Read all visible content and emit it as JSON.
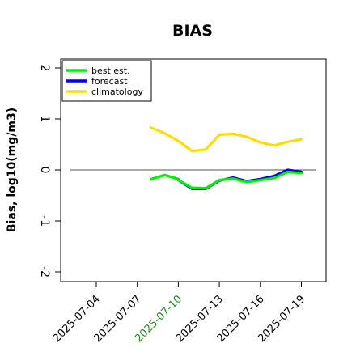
{
  "chart_data": {
    "type": "line",
    "title": "BIAS",
    "ylabel": "Bias, log10(mg/m3)",
    "xlabel": "",
    "ylim": [
      -2.1,
      2.1
    ],
    "yticks": [
      "-2",
      "-1",
      "0",
      "1",
      "2"
    ],
    "reference_line": 0,
    "grid": false,
    "legend_position": "top-left",
    "x_dates": [
      "2025-07-08",
      "2025-07-09",
      "2025-07-10",
      "2025-07-11",
      "2025-07-12",
      "2025-07-13",
      "2025-07-14",
      "2025-07-15",
      "2025-07-16",
      "2025-07-17",
      "2025-07-18",
      "2025-07-19"
    ],
    "xtick_labels": [
      {
        "date": "2025-07-04",
        "label": "2025-07-04",
        "color": "#000000"
      },
      {
        "date": "2025-07-07",
        "label": "2025-07-07",
        "color": "#000000"
      },
      {
        "date": "2025-07-10",
        "label": "2025-07-10",
        "color": "#228B22"
      },
      {
        "date": "2025-07-13",
        "label": "2025-07-13",
        "color": "#000000"
      },
      {
        "date": "2025-07-16",
        "label": "2025-07-16",
        "color": "#000000"
      },
      {
        "date": "2025-07-19",
        "label": "2025-07-19",
        "color": "#000000"
      }
    ],
    "series": [
      {
        "name": "best est.",
        "color": "#00ee00",
        "x": [
          "2025-07-08",
          "2025-07-09",
          "2025-07-10"
        ],
        "values": [
          -0.18,
          -0.1,
          -0.18
        ]
      },
      {
        "name": "forecast",
        "color": "#0000ee",
        "x": [
          "2025-07-10",
          "2025-07-11",
          "2025-07-12",
          "2025-07-13",
          "2025-07-14",
          "2025-07-15",
          "2025-07-16",
          "2025-07-17",
          "2025-07-18",
          "2025-07-19"
        ],
        "values": [
          -0.2,
          -0.37,
          -0.37,
          -0.21,
          -0.15,
          -0.22,
          -0.18,
          -0.12,
          0.0,
          -0.04
        ]
      },
      {
        "name": "",
        "color": "#00ee00",
        "x": [
          "2025-07-10",
          "2025-07-11",
          "2025-07-12",
          "2025-07-13",
          "2025-07-14",
          "2025-07-15",
          "2025-07-16",
          "2025-07-17",
          "2025-07-18",
          "2025-07-19"
        ],
        "values": [
          -0.2,
          -0.35,
          -0.36,
          -0.2,
          -0.17,
          -0.24,
          -0.2,
          -0.16,
          -0.04,
          -0.06
        ]
      },
      {
        "name": "climatology",
        "color": "#ffdd00",
        "x": [
          "2025-07-08",
          "2025-07-09",
          "2025-07-10",
          "2025-07-11",
          "2025-07-12",
          "2025-07-13",
          "2025-07-14",
          "2025-07-15",
          "2025-07-16",
          "2025-07-17",
          "2025-07-18",
          "2025-07-19"
        ],
        "values": [
          0.83,
          0.72,
          0.57,
          0.37,
          0.4,
          0.69,
          0.71,
          0.65,
          0.54,
          0.48,
          0.55,
          0.6
        ]
      }
    ],
    "legend": [
      {
        "label": "best est.",
        "color": "#00ee00"
      },
      {
        "label": "forecast",
        "color": "#0000ee"
      },
      {
        "label": "climatology",
        "color": "#ffdd00"
      }
    ]
  }
}
